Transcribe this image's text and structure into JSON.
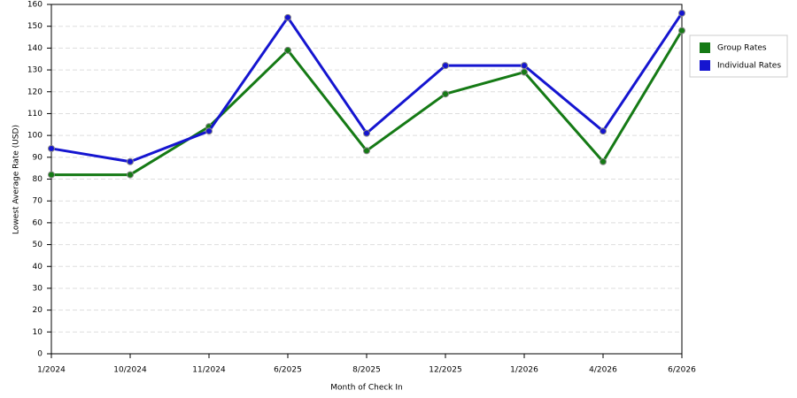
{
  "chart_data": {
    "type": "line",
    "x_label": "Month of Check In",
    "y_label": "Lowest Average Rate (USD)",
    "categories": [
      "1/2024",
      "10/2024",
      "11/2024",
      "6/2025",
      "8/2025",
      "12/2025",
      "1/2026",
      "4/2026",
      "6/2026"
    ],
    "series": [
      {
        "name": "Group Rates",
        "color": "#157a15",
        "values": [
          82,
          82,
          104,
          139,
          93,
          119,
          129,
          88,
          148
        ]
      },
      {
        "name": "Individual Rates",
        "color": "#1515d0",
        "values": [
          94,
          88,
          102,
          154,
          101,
          132,
          132,
          102,
          156
        ]
      }
    ],
    "ylim": [
      0,
      160
    ],
    "yticks": [
      0,
      10,
      20,
      30,
      40,
      50,
      60,
      70,
      80,
      90,
      100,
      110,
      120,
      130,
      140,
      150,
      160
    ],
    "grid": true,
    "legend": "right"
  }
}
